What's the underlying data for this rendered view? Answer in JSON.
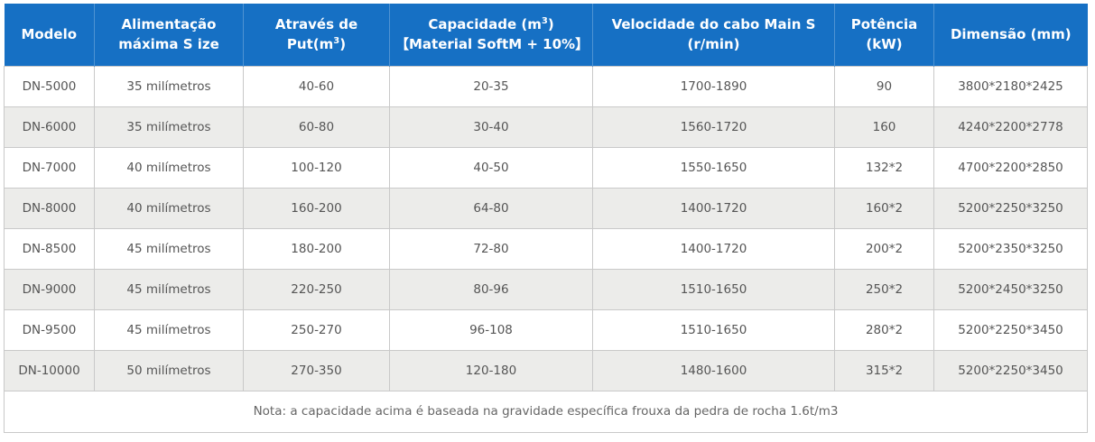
{
  "headers": {
    "modelo": "Modelo",
    "alimentacao_l1": "Alimentação",
    "alimentacao_l2": "máxima S ize",
    "atraves_pre": "Através de Put(m",
    "atraves_sup": "3",
    "atraves_post": ")",
    "capacidade_pre": "Capacidade (m",
    "capacidade_sup": "3",
    "capacidade_post": ")",
    "capacidade_l2": "【Material SoftM + 10%】",
    "velocidade_l1": "Velocidade do cabo Main S",
    "velocidade_l2": "(r/min)",
    "potencia_l1": "Potência",
    "potencia_l2": "(kW)",
    "dimensao": "Dimensão (mm)"
  },
  "rows": [
    [
      "DN-5000",
      "35 milímetros",
      "40-60",
      "20-35",
      "1700-1890",
      "90",
      "3800*2180*2425"
    ],
    [
      "DN-6000",
      "35 milímetros",
      "60-80",
      "30-40",
      "1560-1720",
      "160",
      "4240*2200*2778"
    ],
    [
      "DN-7000",
      "40 milímetros",
      "100-120",
      "40-50",
      "1550-1650",
      "132*2",
      "4700*2200*2850"
    ],
    [
      "DN-8000",
      "40 milímetros",
      "160-200",
      "64-80",
      "1400-1720",
      "160*2",
      "5200*2250*3250"
    ],
    [
      "DN-8500",
      "45 milímetros",
      "180-200",
      "72-80",
      "1400-1720",
      "200*2",
      "5200*2350*3250"
    ],
    [
      "DN-9000",
      "45 milímetros",
      "220-250",
      "80-96",
      "1510-1650",
      "250*2",
      "5200*2450*3250"
    ],
    [
      "DN-9500",
      "45 milímetros",
      "250-270",
      "96-108",
      "1510-1650",
      "280*2",
      "5200*2250*3450"
    ],
    [
      "DN-10000",
      "50 milímetros",
      "270-350",
      "120-180",
      "1480-1600",
      "315*2",
      "5200*2250*3450"
    ]
  ],
  "note": "Nota: a capacidade acima é baseada na gravidade específica frouxa da pedra de rocha 1.6t/m3",
  "colors": {
    "header_bg": "#1670c4",
    "row_alt_bg": "#ececea"
  }
}
